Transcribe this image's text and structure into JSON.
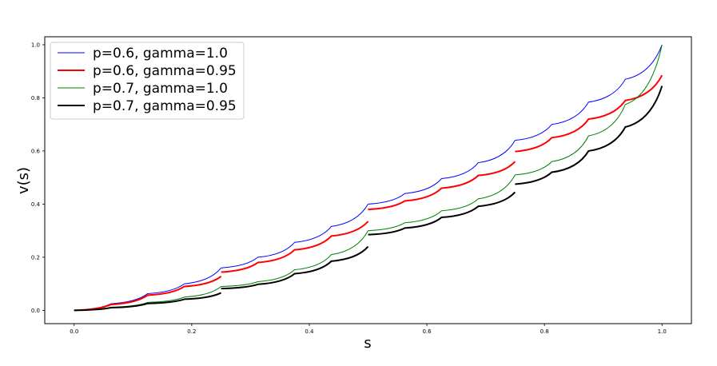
{
  "chart_data": {
    "type": "line",
    "xlabel": "s",
    "ylabel": "v(s)",
    "xlim": [
      -0.05,
      1.05
    ],
    "ylim": [
      -0.05,
      1.03
    ],
    "xticks": [
      "0.0",
      "0.2",
      "0.4",
      "0.6",
      "0.8",
      "1.0"
    ],
    "yticks": [
      "0.0",
      "0.2",
      "0.4",
      "0.6",
      "0.8",
      "1.0"
    ],
    "grid": false,
    "legend_position": "top-left",
    "series": [
      {
        "name": "p=0.6, gamma=1.0",
        "color": "#0000ff",
        "segments": [
          {
            "x": [
              0.0,
              0.0625,
              0.125,
              0.1875,
              0.25
            ],
            "y": [
              0.0,
              0.025,
              0.063,
              0.1,
              0.16
            ]
          },
          {
            "x": [
              0.25,
              0.3125,
              0.375,
              0.4375,
              0.5
            ],
            "y": [
              0.16,
              0.2,
              0.256,
              0.316,
              0.4
            ]
          },
          {
            "x": [
              0.5,
              0.5625,
              0.625,
              0.6875,
              0.75
            ],
            "y": [
              0.4,
              0.44,
              0.496,
              0.556,
              0.64
            ]
          },
          {
            "x": [
              0.75,
              0.8125,
              0.875,
              0.9375,
              1.0
            ],
            "y": [
              0.64,
              0.7,
              0.784,
              0.87,
              1.0
            ]
          }
        ]
      },
      {
        "name": "p=0.6, gamma=0.95",
        "color": "#ff0000",
        "segments": [
          {
            "x": [
              0.0,
              0.0625,
              0.125,
              0.1875,
              0.25
            ],
            "y": [
              0.0,
              0.022,
              0.057,
              0.09,
              0.128
            ]
          },
          {
            "x": [
              0.25,
              0.3125,
              0.375,
              0.4375,
              0.5
            ],
            "y": [
              0.144,
              0.18,
              0.228,
              0.28,
              0.335
            ]
          },
          {
            "x": [
              0.5,
              0.5625,
              0.625,
              0.6875,
              0.75
            ],
            "y": [
              0.38,
              0.412,
              0.46,
              0.508,
              0.56
            ]
          },
          {
            "x": [
              0.75,
              0.8125,
              0.875,
              0.9375,
              1.0
            ],
            "y": [
              0.598,
              0.65,
              0.72,
              0.79,
              0.885
            ]
          }
        ]
      },
      {
        "name": "p=0.7, gamma=1.0",
        "color": "#008000",
        "segments": [
          {
            "x": [
              0.0,
              0.0625,
              0.125,
              0.1875,
              0.25
            ],
            "y": [
              0.0,
              0.012,
              0.03,
              0.05,
              0.09
            ]
          },
          {
            "x": [
              0.25,
              0.3125,
              0.375,
              0.4375,
              0.5
            ],
            "y": [
              0.09,
              0.108,
              0.153,
              0.21,
              0.3
            ]
          },
          {
            "x": [
              0.5,
              0.5625,
              0.625,
              0.6875,
              0.75
            ],
            "y": [
              0.3,
              0.33,
              0.375,
              0.42,
              0.51
            ]
          },
          {
            "x": [
              0.75,
              0.8125,
              0.875,
              0.9375,
              1.0
            ],
            "y": [
              0.51,
              0.56,
              0.657,
              0.775,
              1.0
            ]
          }
        ]
      },
      {
        "name": "p=0.7, gamma=0.95",
        "color": "#000000",
        "segments": [
          {
            "x": [
              0.0,
              0.0625,
              0.125,
              0.1875,
              0.25
            ],
            "y": [
              0.0,
              0.01,
              0.026,
              0.042,
              0.066
            ]
          },
          {
            "x": [
              0.25,
              0.3125,
              0.375,
              0.4375,
              0.5
            ],
            "y": [
              0.082,
              0.098,
              0.138,
              0.185,
              0.24
            ]
          },
          {
            "x": [
              0.5,
              0.5625,
              0.625,
              0.6875,
              0.75
            ],
            "y": [
              0.285,
              0.31,
              0.35,
              0.392,
              0.445
            ]
          },
          {
            "x": [
              0.75,
              0.8125,
              0.875,
              0.9375,
              1.0
            ],
            "y": [
              0.475,
              0.52,
              0.6,
              0.69,
              0.845
            ]
          }
        ]
      }
    ]
  }
}
